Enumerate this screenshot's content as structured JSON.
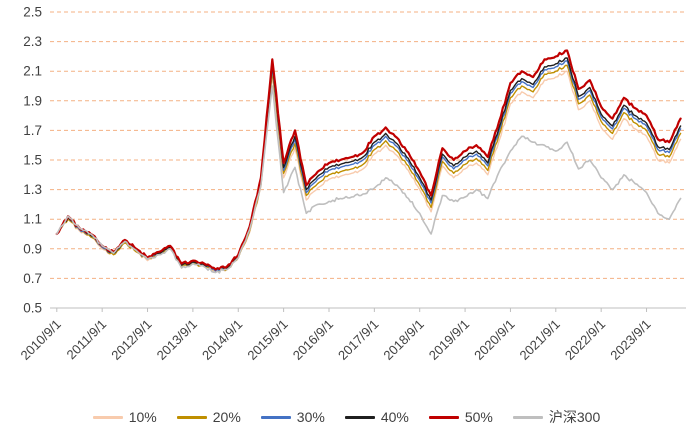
{
  "chart_data": {
    "type": "line",
    "title": "",
    "xlabel": "",
    "ylabel": "",
    "ylim": [
      0.5,
      2.5
    ],
    "grid": {
      "color": "#F4B183",
      "dash": "4 3",
      "axis_color": "#BFBFBF"
    },
    "text_color": "#404040",
    "legend_position": "bottom",
    "y_ticks": [
      0.5,
      0.7,
      0.9,
      1.1,
      1.3,
      1.5,
      1.7,
      1.9,
      2.1,
      2.3,
      2.5
    ],
    "x_tick_positions": [
      2010.75,
      2011.75,
      2012.75,
      2013.75,
      2014.75,
      2015.75,
      2016.75,
      2017.75,
      2018.75,
      2019.75,
      2020.75,
      2021.75,
      2022.75,
      2023.75
    ],
    "x_tick_labels": [
      "2010/9/1",
      "2011/9/1",
      "2012/9/1",
      "2013/9/1",
      "2014/9/1",
      "2015/9/1",
      "2016/9/1",
      "2017/9/1",
      "2018/9/1",
      "2019/9/1",
      "2020/9/1",
      "2021/9/1",
      "2022/9/1",
      "2023/9/1"
    ],
    "x": [
      2010.75,
      2011.0,
      2011.25,
      2011.5,
      2011.75,
      2012.0,
      2012.25,
      2012.5,
      2012.75,
      2013.0,
      2013.25,
      2013.5,
      2013.75,
      2014.0,
      2014.25,
      2014.5,
      2014.75,
      2015.0,
      2015.25,
      2015.5,
      2015.75,
      2016.0,
      2016.25,
      2016.5,
      2016.75,
      2017.0,
      2017.25,
      2017.5,
      2017.75,
      2018.0,
      2018.25,
      2018.5,
      2018.75,
      2019.0,
      2019.25,
      2019.5,
      2019.75,
      2020.0,
      2020.25,
      2020.5,
      2020.75,
      2021.0,
      2021.25,
      2021.5,
      2021.75,
      2022.0,
      2022.25,
      2022.5,
      2022.75,
      2023.0,
      2023.25,
      2023.5,
      2023.75,
      2024.0,
      2024.25,
      2024.5
    ],
    "series": [
      {
        "name": "10%",
        "color": "#F8CBAD",
        "width": 1.4,
        "noise_group": "cluster",
        "values": [
          1.0,
          1.1,
          1.02,
          0.98,
          0.9,
          0.86,
          0.94,
          0.88,
          0.82,
          0.86,
          0.9,
          0.78,
          0.8,
          0.78,
          0.74,
          0.76,
          0.84,
          1.01,
          1.32,
          2.07,
          1.38,
          1.58,
          1.23,
          1.31,
          1.37,
          1.39,
          1.41,
          1.44,
          1.54,
          1.6,
          1.53,
          1.43,
          1.3,
          1.15,
          1.46,
          1.38,
          1.44,
          1.48,
          1.4,
          1.63,
          1.88,
          1.96,
          1.92,
          2.04,
          2.06,
          2.1,
          1.84,
          1.9,
          1.72,
          1.64,
          1.78,
          1.71,
          1.66,
          1.5,
          1.48,
          1.64
        ]
      },
      {
        "name": "20%",
        "color": "#BF8F00",
        "width": 1.4,
        "noise_group": "cluster",
        "values": [
          1.0,
          1.1,
          1.03,
          0.98,
          0.91,
          0.86,
          0.94,
          0.88,
          0.83,
          0.86,
          0.9,
          0.78,
          0.8,
          0.78,
          0.75,
          0.76,
          0.84,
          1.02,
          1.33,
          2.1,
          1.41,
          1.61,
          1.26,
          1.34,
          1.4,
          1.42,
          1.44,
          1.47,
          1.57,
          1.63,
          1.56,
          1.46,
          1.33,
          1.18,
          1.49,
          1.41,
          1.47,
          1.51,
          1.43,
          1.67,
          1.92,
          2.0,
          1.96,
          2.08,
          2.1,
          2.14,
          1.88,
          1.94,
          1.76,
          1.68,
          1.82,
          1.75,
          1.7,
          1.54,
          1.52,
          1.68
        ]
      },
      {
        "name": "30%",
        "color": "#4472C4",
        "width": 1.4,
        "noise_group": "cluster",
        "values": [
          1.0,
          1.11,
          1.03,
          0.99,
          0.91,
          0.87,
          0.95,
          0.89,
          0.83,
          0.87,
          0.91,
          0.79,
          0.81,
          0.79,
          0.75,
          0.77,
          0.85,
          1.03,
          1.35,
          2.13,
          1.43,
          1.64,
          1.28,
          1.37,
          1.43,
          1.45,
          1.47,
          1.5,
          1.6,
          1.66,
          1.59,
          1.49,
          1.36,
          1.21,
          1.52,
          1.44,
          1.5,
          1.54,
          1.46,
          1.7,
          1.95,
          2.03,
          1.99,
          2.11,
          2.13,
          2.17,
          1.91,
          1.97,
          1.79,
          1.71,
          1.85,
          1.78,
          1.73,
          1.57,
          1.55,
          1.71
        ]
      },
      {
        "name": "40%",
        "color": "#1F1F1F",
        "width": 1.4,
        "noise_group": "cluster",
        "values": [
          1.0,
          1.11,
          1.04,
          0.99,
          0.92,
          0.87,
          0.95,
          0.89,
          0.84,
          0.87,
          0.91,
          0.79,
          0.81,
          0.79,
          0.76,
          0.77,
          0.85,
          1.04,
          1.36,
          2.15,
          1.45,
          1.66,
          1.3,
          1.39,
          1.45,
          1.47,
          1.49,
          1.52,
          1.62,
          1.68,
          1.61,
          1.51,
          1.38,
          1.23,
          1.54,
          1.46,
          1.52,
          1.56,
          1.48,
          1.72,
          1.97,
          2.05,
          2.01,
          2.13,
          2.15,
          2.19,
          1.93,
          1.99,
          1.81,
          1.73,
          1.87,
          1.8,
          1.75,
          1.59,
          1.57,
          1.73
        ]
      },
      {
        "name": "50%",
        "color": "#C00000",
        "width": 2.2,
        "noise_group": "cluster",
        "values": [
          1.0,
          1.12,
          1.04,
          1.0,
          0.92,
          0.88,
          0.96,
          0.9,
          0.84,
          0.88,
          0.92,
          0.8,
          0.82,
          0.8,
          0.76,
          0.78,
          0.86,
          1.05,
          1.38,
          2.18,
          1.48,
          1.7,
          1.33,
          1.42,
          1.48,
          1.5,
          1.52,
          1.55,
          1.66,
          1.72,
          1.65,
          1.55,
          1.42,
          1.26,
          1.58,
          1.5,
          1.56,
          1.6,
          1.52,
          1.76,
          2.02,
          2.1,
          2.06,
          2.18,
          2.2,
          2.24,
          1.98,
          2.04,
          1.86,
          1.78,
          1.92,
          1.85,
          1.8,
          1.64,
          1.62,
          1.78
        ]
      },
      {
        "name": "沪深300",
        "color": "#BFBFBF",
        "width": 1.6,
        "noise_group": "index",
        "values": [
          1.0,
          1.12,
          1.04,
          1.0,
          0.92,
          0.87,
          0.95,
          0.89,
          0.83,
          0.86,
          0.9,
          0.77,
          0.8,
          0.78,
          0.74,
          0.76,
          0.84,
          1.03,
          1.33,
          2.0,
          1.28,
          1.45,
          1.14,
          1.2,
          1.22,
          1.24,
          1.25,
          1.27,
          1.31,
          1.38,
          1.33,
          1.24,
          1.14,
          1.0,
          1.26,
          1.22,
          1.25,
          1.3,
          1.24,
          1.42,
          1.56,
          1.66,
          1.62,
          1.6,
          1.56,
          1.62,
          1.44,
          1.5,
          1.38,
          1.3,
          1.4,
          1.34,
          1.28,
          1.14,
          1.1,
          1.24
        ]
      }
    ]
  }
}
